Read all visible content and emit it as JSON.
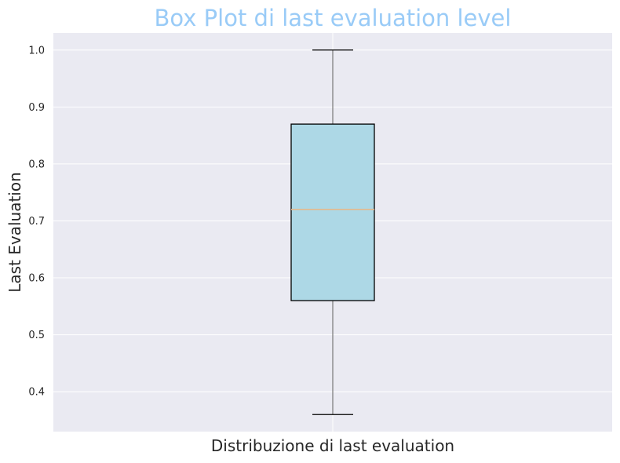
{
  "chart_data": {
    "type": "boxplot",
    "title": "Box Plot di last evaluation level",
    "xlabel": "Distribuzione di last evaluation",
    "ylabel": "Last Evaluation",
    "ylim": [
      0.33,
      1.03
    ],
    "yticks": [
      "0.4",
      "0.5",
      "0.6",
      "0.7",
      "0.8",
      "0.9",
      "1.0"
    ],
    "grid": true,
    "boxes": [
      {
        "min": 0.36,
        "q1": 0.56,
        "median": 0.72,
        "q3": 0.87,
        "max": 1.0
      }
    ],
    "colors": {
      "title": "#99cbf7",
      "background": "#eaeaf2",
      "box_fill": "#add8e6",
      "box_edge": "#000000",
      "whisker": "#808080",
      "median": "#e6b88a",
      "grid": "#ffffff"
    }
  }
}
